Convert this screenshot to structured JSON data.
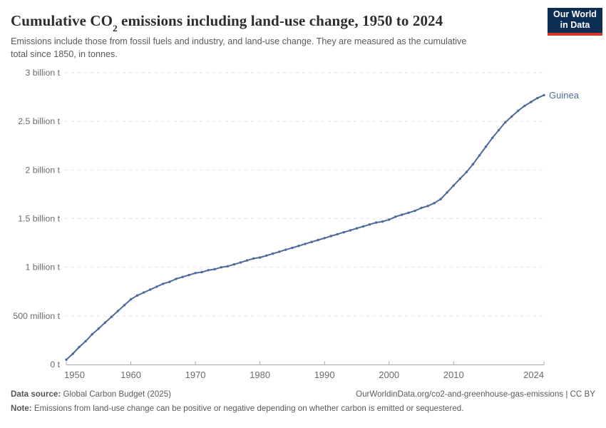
{
  "header": {
    "title_pre": "Cumulative CO",
    "title_sub": "2",
    "title_post": " emissions including land-use change, 1950 to 2024",
    "subtitle": "Emissions include those from fossil fuels and industry, and land-use change. They are measured as the cumulative total since 1850, in tonnes.",
    "logo": {
      "line1": "Our World",
      "line2": "in Data",
      "bg_color": "#0d2e54",
      "accent_color": "#d8372e"
    }
  },
  "chart_data": {
    "type": "line",
    "title": "Cumulative CO₂ emissions including land-use change, 1950 to 2024",
    "xlabel": "",
    "ylabel": "",
    "unit": "tonnes",
    "grid": "horizontal-dashed",
    "legend_position": "end-of-line",
    "xlim": [
      1950,
      2024
    ],
    "ylim": [
      0,
      3000000000
    ],
    "ylim_billion": [
      0,
      3
    ],
    "x_ticks": [
      1950,
      1960,
      1970,
      1980,
      1990,
      2000,
      2010,
      2024
    ],
    "y_ticks": [
      {
        "value": 0,
        "label": "0 t"
      },
      {
        "value": 0.5,
        "label": "500 million t"
      },
      {
        "value": 1,
        "label": "1 billion t"
      },
      {
        "value": 1.5,
        "label": "1.5 billion t"
      },
      {
        "value": 2,
        "label": "2 billion t"
      },
      {
        "value": 2.5,
        "label": "2.5 billion t"
      },
      {
        "value": 3,
        "label": "3 billion t"
      }
    ],
    "x": [
      1950,
      1951,
      1952,
      1953,
      1954,
      1955,
      1956,
      1957,
      1958,
      1959,
      1960,
      1961,
      1962,
      1963,
      1964,
      1965,
      1966,
      1967,
      1968,
      1969,
      1970,
      1971,
      1972,
      1973,
      1974,
      1975,
      1976,
      1977,
      1978,
      1979,
      1980,
      1981,
      1982,
      1983,
      1984,
      1985,
      1986,
      1987,
      1988,
      1989,
      1990,
      1991,
      1992,
      1993,
      1994,
      1995,
      1996,
      1997,
      1998,
      1999,
      2000,
      2001,
      2002,
      2003,
      2004,
      2005,
      2006,
      2007,
      2008,
      2009,
      2010,
      2011,
      2012,
      2013,
      2014,
      2015,
      2016,
      2017,
      2018,
      2019,
      2020,
      2021,
      2022,
      2023,
      2024
    ],
    "series": [
      {
        "name": "Guinea",
        "end_label": "Guinea",
        "color": "#4c6a9c",
        "values_billion_t": [
          0.05,
          0.11,
          0.18,
          0.24,
          0.31,
          0.37,
          0.43,
          0.49,
          0.55,
          0.61,
          0.67,
          0.71,
          0.74,
          0.77,
          0.8,
          0.83,
          0.85,
          0.88,
          0.9,
          0.92,
          0.94,
          0.95,
          0.97,
          0.98,
          1.0,
          1.01,
          1.03,
          1.05,
          1.07,
          1.09,
          1.1,
          1.12,
          1.14,
          1.16,
          1.18,
          1.2,
          1.22,
          1.24,
          1.26,
          1.28,
          1.3,
          1.32,
          1.34,
          1.36,
          1.38,
          1.4,
          1.42,
          1.44,
          1.46,
          1.47,
          1.49,
          1.52,
          1.54,
          1.56,
          1.58,
          1.61,
          1.63,
          1.66,
          1.7,
          1.77,
          1.84,
          1.91,
          1.98,
          2.06,
          2.15,
          2.24,
          2.33,
          2.41,
          2.49,
          2.55,
          2.61,
          2.66,
          2.7,
          2.74,
          2.77
        ]
      }
    ]
  },
  "footer": {
    "source_label": "Data source:",
    "source_text": " Global Carbon Budget (2025)",
    "link_text": "OurWorldinData.org/co2-and-greenhouse-gas-emissions | CC BY",
    "note_label": "Note:",
    "note_text": " Emissions from land-use change can be positive or negative depending on whether carbon is emitted or sequestered."
  },
  "colors": {
    "line": "#4c6a9c",
    "grid": "#e2e2e2",
    "axis": "#a8a8a8",
    "tick_text": "#6b6b6b",
    "title_text": "#2d2d2d",
    "subtitle_text": "#5a5a5a",
    "footer_text": "#5b5b5b",
    "logo_navy": "#0d2e54",
    "logo_red": "#d8372e"
  }
}
